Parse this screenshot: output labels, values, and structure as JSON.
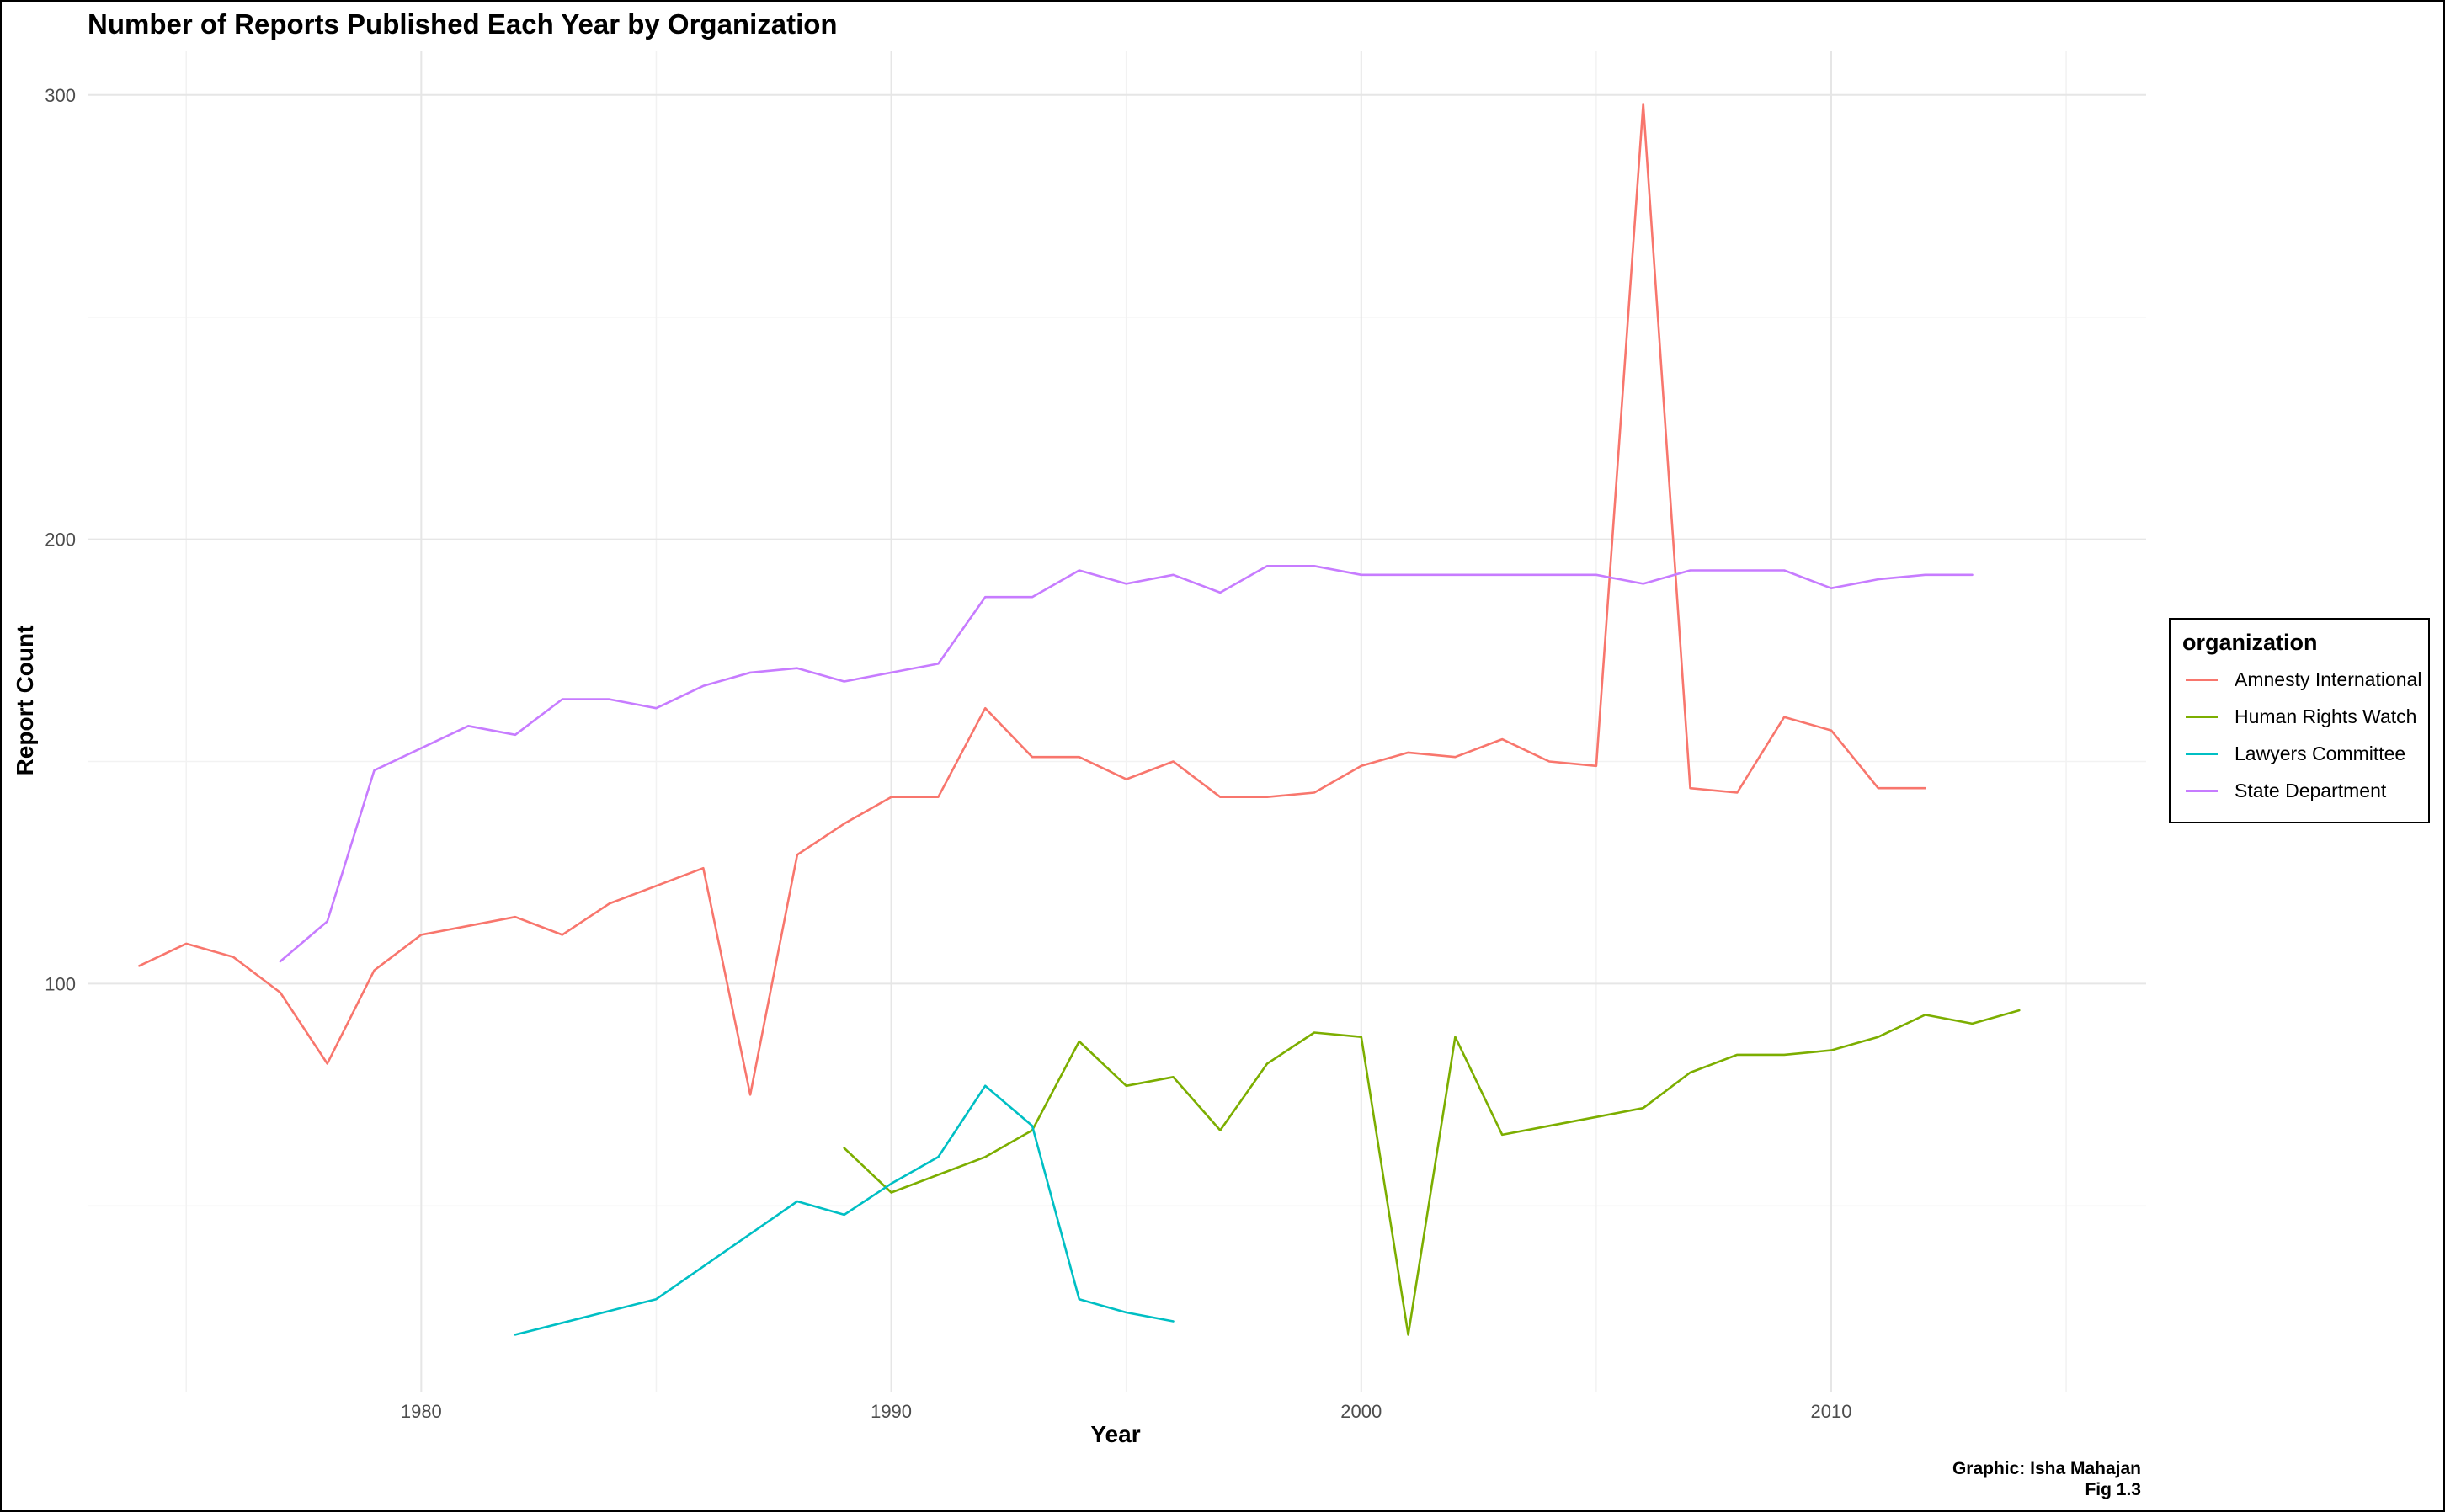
{
  "chart_data": {
    "type": "line",
    "title": "Number of Reports Published Each Year by Organization",
    "xlabel": "Year",
    "ylabel": "Report Count",
    "xlim": [
      1972.9,
      2016.7
    ],
    "ylim": [
      8,
      310
    ],
    "x_ticks": [
      1980,
      1990,
      2000,
      2010
    ],
    "y_ticks": [
      100,
      200,
      300
    ],
    "grid": true,
    "legend": {
      "title": "organization",
      "position": "right"
    },
    "caption": [
      "Graphic: Isha Mahajan",
      "Fig 1.3"
    ],
    "series": [
      {
        "name": "Amnesty International",
        "color": "#F8766D",
        "x": [
          1974,
          1975,
          1976,
          1977,
          1978,
          1979,
          1980,
          1981,
          1982,
          1983,
          1984,
          1985,
          1986,
          1987,
          1988,
          1989,
          1990,
          1991,
          1992,
          1993,
          1994,
          1995,
          1996,
          1997,
          1998,
          1999,
          2000,
          2001,
          2002,
          2003,
          2004,
          2005,
          2006,
          2007,
          2008,
          2009,
          2010,
          2011,
          2012
        ],
        "y": [
          104,
          109,
          106,
          98,
          82,
          103,
          111,
          113,
          115,
          111,
          118,
          122,
          126,
          75,
          129,
          136,
          142,
          142,
          162,
          151,
          151,
          146,
          150,
          142,
          142,
          143,
          149,
          152,
          151,
          155,
          150,
          149,
          298,
          144,
          143,
          160,
          157,
          144,
          144
        ]
      },
      {
        "name": "Human Rights Watch",
        "color": "#7CAE00",
        "x": [
          1989,
          1990,
          1991,
          1992,
          1993,
          1994,
          1995,
          1996,
          1997,
          1998,
          1999,
          2000,
          2001,
          2002,
          2003,
          2004,
          2005,
          2006,
          2007,
          2008,
          2009,
          2010,
          2011,
          2012,
          2013,
          2014
        ],
        "y": [
          63,
          53,
          57,
          61,
          67,
          87,
          77,
          79,
          67,
          82,
          89,
          88,
          21,
          88,
          66,
          68,
          70,
          72,
          80,
          84,
          84,
          85,
          88,
          93,
          91,
          94
        ]
      },
      {
        "name": "Lawyers Committee",
        "color": "#00BFC4",
        "x": [
          1982,
          1985,
          1988,
          1989,
          1990,
          1991,
          1992,
          1993,
          1994,
          1995,
          1996
        ],
        "y": [
          21,
          29,
          51,
          48,
          55,
          61,
          77,
          68,
          29,
          26,
          24
        ]
      },
      {
        "name": "State Department",
        "color": "#C77CFF",
        "x": [
          1977,
          1978,
          1979,
          1980,
          1981,
          1982,
          1983,
          1984,
          1985,
          1986,
          1987,
          1988,
          1989,
          1990,
          1991,
          1992,
          1993,
          1994,
          1995,
          1996,
          1997,
          1998,
          1999,
          2000,
          2001,
          2002,
          2003,
          2004,
          2005,
          2006,
          2007,
          2008,
          2009,
          2010,
          2011,
          2012,
          2013
        ],
        "y": [
          105,
          114,
          148,
          153,
          158,
          156,
          164,
          164,
          162,
          167,
          170,
          171,
          168,
          170,
          172,
          187,
          187,
          193,
          190,
          192,
          188,
          194,
          194,
          192,
          192,
          192,
          192,
          192,
          192,
          190,
          193,
          193,
          193,
          189,
          191,
          192,
          192
        ]
      }
    ]
  }
}
